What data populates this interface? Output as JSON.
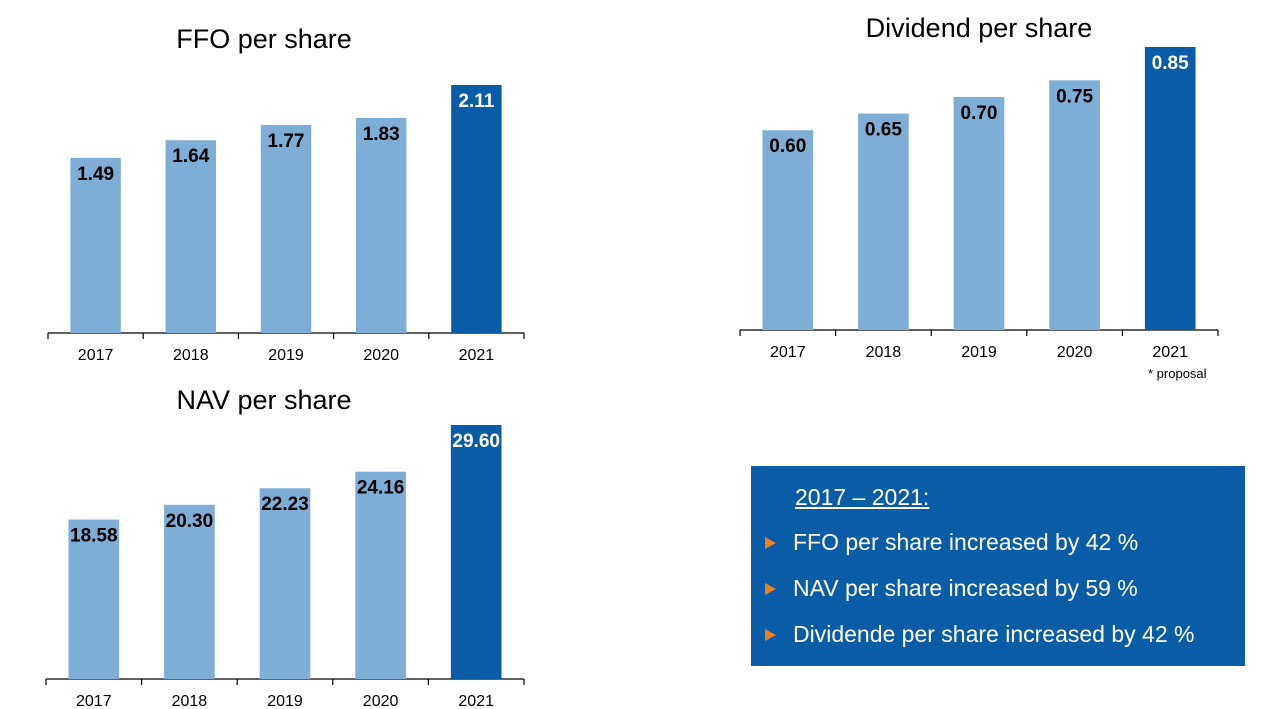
{
  "colors": {
    "bar": "#7eaed6",
    "highlight": "#0a5ca7",
    "axis": "#000000",
    "summary_bg": "#0a5ca7",
    "bullet": "#f07f22"
  },
  "chart_data": [
    {
      "type": "bar",
      "title": "FFO per share",
      "categories": [
        "2017",
        "2018",
        "2019",
        "2020",
        "2021"
      ],
      "values": [
        1.49,
        1.64,
        1.77,
        1.83,
        2.11
      ],
      "data_labels": [
        "1.49",
        "1.64",
        "1.77",
        "1.83",
        "2.11"
      ],
      "highlight_index": 4,
      "ylim": [
        0,
        2.11
      ],
      "grid": false,
      "legend": "none"
    },
    {
      "type": "bar",
      "title": "Dividend per share",
      "categories": [
        "2017",
        "2018",
        "2019",
        "2020",
        "2021"
      ],
      "values": [
        0.6,
        0.65,
        0.7,
        0.75,
        0.85
      ],
      "data_labels": [
        "0.60",
        "0.65",
        "0.70",
        "0.75",
        "0.85"
      ],
      "highlight_index": 4,
      "ylim": [
        0,
        0.85
      ],
      "grid": false,
      "legend": "none",
      "note": "* proposal"
    },
    {
      "type": "bar",
      "title": "NAV per share",
      "categories": [
        "2017",
        "2018",
        "2019",
        "2020",
        "2021"
      ],
      "values": [
        18.58,
        20.3,
        22.23,
        24.16,
        29.6
      ],
      "data_labels": [
        "18.58",
        "20.30",
        "22.23",
        "24.16",
        "29.60"
      ],
      "highlight_index": 4,
      "ylim": [
        0,
        29.6
      ],
      "grid": false,
      "legend": "none"
    }
  ],
  "summary": {
    "heading": "2017 – 2021:",
    "bullet_icon": "triangle-right-icon",
    "items": [
      "FFO per share increased by 42 %",
      "NAV per share increased by 59 %",
      "Dividende per share increased by 42 %"
    ]
  }
}
